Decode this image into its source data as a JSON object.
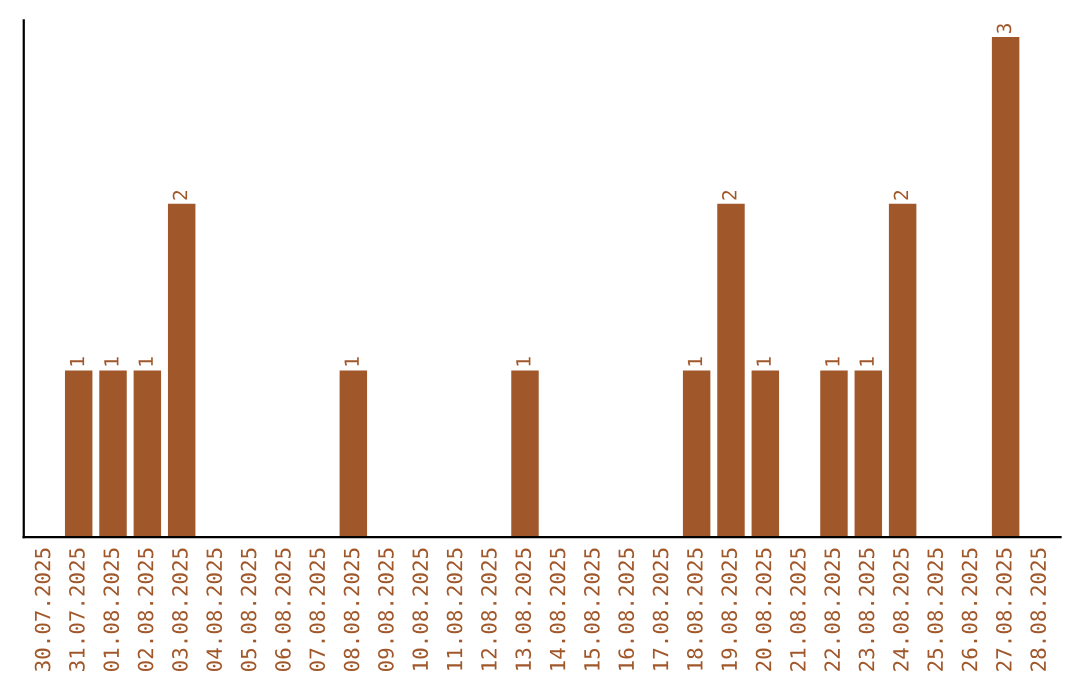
{
  "chart_data": {
    "type": "bar",
    "categories": [
      "30.07.2025",
      "31.07.2025",
      "01.08.2025",
      "02.08.2025",
      "03.08.2025",
      "04.08.2025",
      "05.08.2025",
      "06.08.2025",
      "07.08.2025",
      "08.08.2025",
      "09.08.2025",
      "10.08.2025",
      "11.08.2025",
      "12.08.2025",
      "13.08.2025",
      "14.08.2025",
      "15.08.2025",
      "16.08.2025",
      "17.08.2025",
      "18.08.2025",
      "19.08.2025",
      "20.08.2025",
      "21.08.2025",
      "22.08.2025",
      "23.08.2025",
      "24.08.2025",
      "25.08.2025",
      "26.08.2025",
      "27.08.2025",
      "28.08.2025"
    ],
    "values": [
      0,
      1,
      1,
      1,
      2,
      0,
      0,
      0,
      0,
      1,
      0,
      0,
      0,
      0,
      1,
      0,
      0,
      0,
      0,
      1,
      2,
      1,
      0,
      1,
      1,
      2,
      0,
      0,
      3,
      0
    ],
    "value_labels": [
      null,
      "1",
      "1",
      "1",
      "2",
      null,
      null,
      null,
      null,
      "1",
      null,
      null,
      null,
      null,
      "1",
      null,
      null,
      null,
      null,
      "1",
      "2",
      "1",
      null,
      "1",
      "1",
      "2",
      null,
      null,
      "3",
      null
    ],
    "color": "#a0572a",
    "ylim": [
      0,
      3.1
    ],
    "tick_labels": "x",
    "grid": false,
    "legend": false
  }
}
